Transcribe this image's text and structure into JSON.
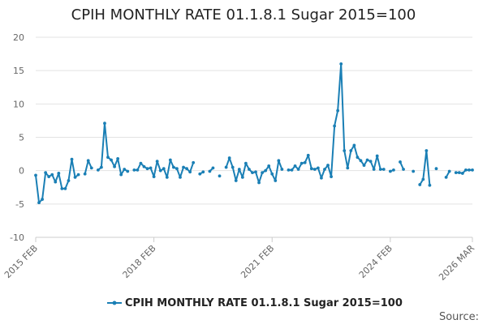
{
  "chart_data": {
    "type": "line",
    "title": "CPIH MONTHLY RATE 01.1.8.1 Sugar 2015=100",
    "xlabel": "",
    "ylabel": "",
    "ylim": [
      -10,
      20
    ],
    "yticks": [
      "-10",
      "-5",
      "0",
      "5",
      "10",
      "15",
      "20"
    ],
    "ytick_values": [
      -10,
      -5,
      0,
      5,
      10,
      15,
      20
    ],
    "xticks": [
      {
        "label": "2015 FEB",
        "index": 0
      },
      {
        "label": "2018 FEB",
        "index": 36
      },
      {
        "label": "2021 FEB",
        "index": 72
      },
      {
        "label": "2024 FEB",
        "index": 108
      },
      {
        "label": "2026 MAR",
        "index": 133
      }
    ],
    "grid": true,
    "legend": "bottom-center",
    "source_label": "Source:",
    "series": [
      {
        "name": "CPIH MONTHLY RATE 01.1.8.1 Sugar 2015=100",
        "color": "#1a7fb5",
        "values": [
          -0.7,
          -4.8,
          -4.3,
          -0.3,
          -0.9,
          -0.6,
          -1.7,
          -0.4,
          -2.7,
          -2.7,
          -1.5,
          1.7,
          -1.0,
          -0.6,
          null,
          -0.5,
          1.5,
          0.4,
          null,
          0.1,
          0.5,
          7.1,
          2.0,
          1.6,
          0.6,
          1.8,
          -0.6,
          0.2,
          -0.1,
          null,
          0.1,
          0.1,
          1.1,
          0.6,
          0.3,
          0.4,
          -0.9,
          1.4,
          0.0,
          0.3,
          -1.0,
          1.6,
          0.5,
          0.3,
          -1.0,
          0.5,
          0.3,
          -0.2,
          1.2,
          null,
          -0.5,
          -0.2,
          null,
          -0.1,
          0.4,
          null,
          -0.8,
          null,
          0.5,
          1.9,
          0.5,
          -1.5,
          0.2,
          -1.0,
          1.1,
          0.2,
          -0.3,
          -0.2,
          -1.8,
          -0.3,
          0.0,
          0.7,
          -0.5,
          -1.5,
          1.5,
          0.2,
          null,
          0.1,
          0.1,
          0.7,
          0.2,
          1.1,
          1.2,
          2.3,
          0.3,
          0.2,
          0.4,
          -1.1,
          0.2,
          0.8,
          -0.9,
          6.7,
          9.0,
          16.0,
          3.0,
          0.4,
          3.0,
          3.8,
          2.0,
          1.5,
          0.8,
          1.6,
          1.4,
          0.2,
          2.2,
          0.2,
          0.2,
          null,
          -0.1,
          0.1,
          null,
          1.3,
          0.2,
          null,
          null,
          -0.1,
          null,
          -2.1,
          -1.3,
          3.0,
          -2.2,
          null,
          0.3,
          null,
          null,
          -1.0,
          -0.1,
          null,
          -0.3,
          -0.3,
          -0.4,
          0.1,
          0.1,
          0.1
        ]
      }
    ]
  }
}
